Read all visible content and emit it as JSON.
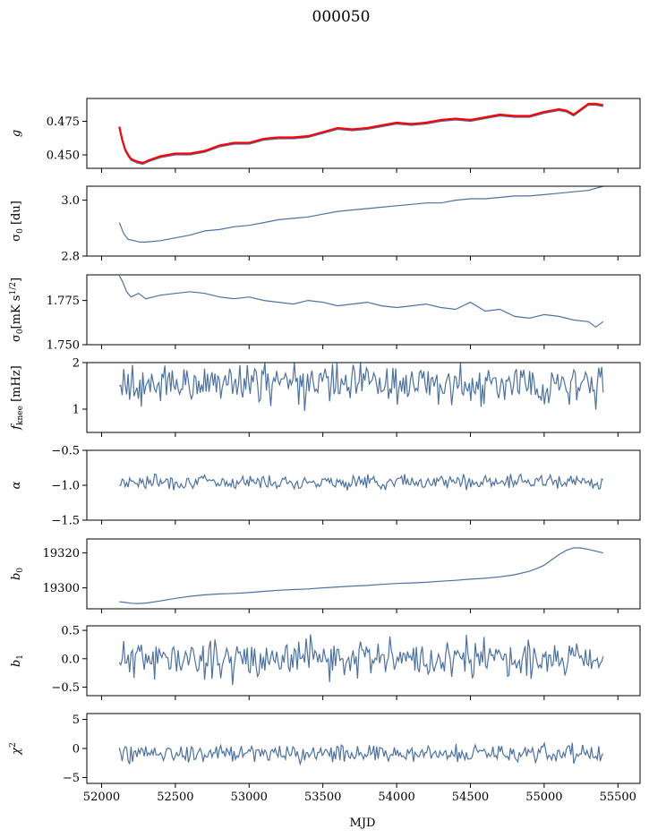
{
  "title": "000050",
  "colors": {
    "line": "#4c72a4",
    "overlay": "#ff0000",
    "axes": "#000000"
  },
  "chart_data": {
    "type": "line",
    "shared_x": {
      "label": "MJD",
      "range": [
        51900,
        55650
      ],
      "ticks": [
        52000,
        52500,
        53000,
        53500,
        54000,
        54500,
        55000,
        55500
      ],
      "tick_labels": [
        "52000",
        "52500",
        "53000",
        "53500",
        "54000",
        "54500",
        "55000",
        "55500"
      ],
      "data_range": [
        52120,
        55400
      ]
    },
    "panels": [
      {
        "ylabel": "g",
        "ylim": [
          0.44,
          0.492
        ],
        "yticks": [
          0.45,
          0.475
        ],
        "ytick_labels": [
          "0.450",
          "0.475"
        ],
        "series": [
          {
            "color": "#4c72a4",
            "x": [
              52120,
              52140,
              52160,
              52180,
              52200,
              52240,
              52280,
              52320,
              52400,
              52500,
              52600,
              52700,
              52800,
              52900,
              53000,
              53100,
              53200,
              53300,
              53400,
              53500,
              53600,
              53700,
              53800,
              53900,
              54000,
              54100,
              54200,
              54300,
              54400,
              54500,
              54600,
              54700,
              54800,
              54900,
              55000,
              55100,
              55150,
              55200,
              55250,
              55300,
              55350,
              55400
            ],
            "y": [
              0.47,
              0.46,
              0.453,
              0.449,
              0.446,
              0.444,
              0.443,
              0.445,
              0.448,
              0.45,
              0.45,
              0.452,
              0.456,
              0.458,
              0.458,
              0.461,
              0.462,
              0.462,
              0.463,
              0.466,
              0.469,
              0.468,
              0.469,
              0.471,
              0.473,
              0.472,
              0.473,
              0.475,
              0.476,
              0.475,
              0.477,
              0.479,
              0.478,
              0.478,
              0.481,
              0.483,
              0.482,
              0.479,
              0.483,
              0.487,
              0.487,
              0.486
            ]
          },
          {
            "color": "#ff0000",
            "x": [
              52120,
              52140,
              52160,
              52180,
              52200,
              52240,
              52280,
              52320,
              52400,
              52500,
              52600,
              52700,
              52800,
              52900,
              53000,
              53100,
              53200,
              53300,
              53400,
              53500,
              53600,
              53700,
              53800,
              53900,
              54000,
              54100,
              54200,
              54300,
              54400,
              54500,
              54600,
              54700,
              54800,
              54900,
              55000,
              55100,
              55150,
              55200,
              55250,
              55300,
              55350,
              55400
            ],
            "y": [
              0.471,
              0.461,
              0.454,
              0.45,
              0.447,
              0.445,
              0.444,
              0.446,
              0.449,
              0.451,
              0.451,
              0.453,
              0.457,
              0.459,
              0.459,
              0.462,
              0.463,
              0.463,
              0.464,
              0.467,
              0.47,
              0.469,
              0.47,
              0.472,
              0.474,
              0.473,
              0.474,
              0.476,
              0.477,
              0.476,
              0.478,
              0.48,
              0.479,
              0.479,
              0.482,
              0.484,
              0.483,
              0.48,
              0.484,
              0.488,
              0.488,
              0.487
            ]
          }
        ]
      },
      {
        "ylabel": "σ0 [du]",
        "ylim": [
          2.8,
          3.05
        ],
        "yticks": [
          2.8,
          3.0
        ],
        "ytick_labels": [
          "2.8",
          "3.0"
        ],
        "series": [
          {
            "color": "#4c72a4",
            "x": [
              52120,
              52150,
              52180,
              52220,
              52260,
              52300,
              52400,
              52500,
              52600,
              52700,
              52800,
              52900,
              53000,
              53100,
              53200,
              53300,
              53400,
              53500,
              53600,
              53700,
              53800,
              53900,
              54000,
              54100,
              54200,
              54300,
              54400,
              54500,
              54600,
              54700,
              54800,
              54900,
              55000,
              55100,
              55200,
              55300,
              55400
            ],
            "y": [
              2.92,
              2.88,
              2.86,
              2.855,
              2.85,
              2.85,
              2.855,
              2.865,
              2.875,
              2.89,
              2.895,
              2.905,
              2.91,
              2.92,
              2.93,
              2.935,
              2.94,
              2.95,
              2.96,
              2.965,
              2.97,
              2.975,
              2.98,
              2.985,
              2.99,
              2.99,
              3.0,
              3.005,
              3.005,
              3.01,
              3.015,
              3.015,
              3.02,
              3.025,
              3.03,
              3.035,
              3.05
            ]
          }
        ]
      },
      {
        "ylabel": "σ0[mK s^1/2]",
        "ylim": [
          1.75,
          1.7895
        ],
        "yticks": [
          1.75,
          1.775
        ],
        "ytick_labels": [
          "1.750",
          "1.775"
        ],
        "series": [
          {
            "color": "#4c72a4",
            "x": [
              52120,
              52140,
              52170,
              52200,
              52250,
              52300,
              52400,
              52500,
              52600,
              52700,
              52800,
              52900,
              53000,
              53100,
              53200,
              53300,
              53400,
              53500,
              53600,
              53700,
              53800,
              53900,
              54000,
              54100,
              54200,
              54300,
              54400,
              54500,
              54600,
              54700,
              54800,
              54900,
              55000,
              55100,
              55200,
              55300,
              55350,
              55400
            ],
            "y": [
              1.789,
              1.786,
              1.78,
              1.777,
              1.779,
              1.776,
              1.778,
              1.779,
              1.78,
              1.779,
              1.777,
              1.776,
              1.777,
              1.775,
              1.774,
              1.773,
              1.775,
              1.774,
              1.772,
              1.773,
              1.774,
              1.772,
              1.771,
              1.772,
              1.773,
              1.771,
              1.77,
              1.774,
              1.769,
              1.77,
              1.766,
              1.765,
              1.767,
              1.766,
              1.764,
              1.763,
              1.76,
              1.763
            ]
          }
        ]
      },
      {
        "ylabel": "fknee [mHz]",
        "ylim": [
          0.5,
          2.0
        ],
        "yticks": [
          1,
          2
        ],
        "ytick_labels": [
          "1",
          "2"
        ],
        "series": [
          {
            "color": "#4c72a4",
            "noise": {
              "mean": 1.55,
              "amp": 0.22,
              "count": 330,
              "x_start": 52120,
              "x_end": 55400,
              "clip": [
                0.9,
                2.0
              ],
              "seed": 4
            }
          }
        ]
      },
      {
        "ylabel": "α",
        "ylim": [
          -1.5,
          -0.5
        ],
        "yticks": [
          -1.5,
          -1.0,
          -0.5
        ],
        "ytick_labels": [
          "−1.5",
          "−1.0",
          "−0.5"
        ],
        "series": [
          {
            "color": "#4c72a4",
            "noise": {
              "mean": -0.95,
              "amp": 0.05,
              "count": 330,
              "x_start": 52120,
              "x_end": 55400,
              "clip": [
                -1.2,
                -0.8
              ],
              "seed": 7
            }
          }
        ]
      },
      {
        "ylabel": "b0",
        "ylim": [
          19288,
          19328
        ],
        "yticks": [
          19300,
          19320
        ],
        "ytick_labels": [
          "19300",
          "19320"
        ],
        "series": [
          {
            "color": "#4c72a4",
            "x": [
              52120,
              52150,
              52200,
              52250,
              52300,
              52400,
              52500,
              52600,
              52700,
              52800,
              52900,
              53000,
              53100,
              53200,
              53300,
              53400,
              53500,
              53600,
              53700,
              53800,
              53900,
              54000,
              54100,
              54200,
              54300,
              54400,
              54500,
              54600,
              54700,
              54800,
              54900,
              54950,
              55000,
              55050,
              55100,
              55150,
              55200,
              55250,
              55300,
              55350,
              55400
            ],
            "y": [
              19292,
              19291.8,
              19291.2,
              19291,
              19291.3,
              19292.5,
              19294,
              19295.2,
              19296,
              19296.5,
              19296.8,
              19297.3,
              19298,
              19298.6,
              19299,
              19299.4,
              19300,
              19300.5,
              19301,
              19301.4,
              19302,
              19302.5,
              19302.8,
              19303.2,
              19303.8,
              19304.3,
              19305,
              19305.5,
              19306.3,
              19307.5,
              19309.5,
              19311,
              19313,
              19316,
              19319,
              19321.5,
              19323,
              19322.8,
              19322,
              19321,
              19320
            ]
          }
        ]
      },
      {
        "ylabel": "b1",
        "ylim": [
          -0.65,
          0.58
        ],
        "yticks": [
          -0.5,
          0.0,
          0.5
        ],
        "ytick_labels": [
          "−0.5",
          "0.0",
          "0.5"
        ],
        "series": [
          {
            "color": "#4c72a4",
            "noise": {
              "mean": 0.0,
              "amp": 0.17,
              "count": 330,
              "x_start": 52120,
              "x_end": 55400,
              "clip": [
                -0.6,
                0.55
              ],
              "seed": 11
            }
          }
        ]
      },
      {
        "ylabel": "χ2",
        "ylim": [
          -6,
          6
        ],
        "yticks": [
          -5,
          0,
          5
        ],
        "ytick_labels": [
          "−5",
          "0",
          "5"
        ],
        "series": [
          {
            "color": "#4c72a4",
            "noise": {
              "mean": -0.8,
              "amp": 0.8,
              "count": 330,
              "x_start": 52120,
              "x_end": 55400,
              "clip": [
                -4.5,
                2.0
              ],
              "seed": 19
            }
          }
        ]
      }
    ]
  }
}
